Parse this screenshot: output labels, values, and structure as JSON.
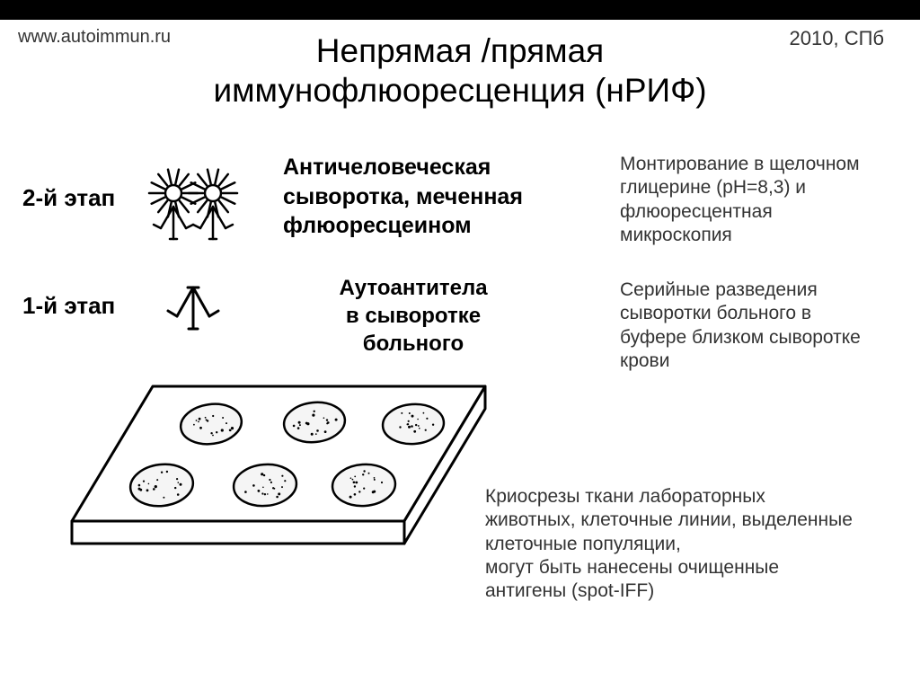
{
  "colors": {
    "background": "#ffffff",
    "top_band": "#000000",
    "text_main": "#000000",
    "text_secondary": "#333333",
    "line": "#000000",
    "cell_fill": "#f5f5f5",
    "slide_fill": "#ffffff"
  },
  "header": {
    "site": "www.autoimmun.ru",
    "year_city": "2010, СПб"
  },
  "title": {
    "line1": "Непрямая /прямая",
    "line2": "иммунофлюоресценция (нРИФ)"
  },
  "stage2": {
    "label": "2-й этап",
    "heading_line1": "Античеловеческая",
    "heading_line2": "сыворотка, меченная",
    "heading_line3": "флюоресцеином",
    "desc_line1": "Монтирование в щелочном",
    "desc_line2": "глицерине (рН=8,3) и",
    "desc_line3": "флюоресцентная",
    "desc_line4": "микроскопия"
  },
  "stage1": {
    "label": "1-й этап",
    "heading_line1": "Аутоантитела",
    "heading_line2": "в сыворотке",
    "heading_line3": "больного",
    "desc_line1": "Серийные разведения",
    "desc_line2": "сыворотки больного в",
    "desc_line3": "буфере близком сыворотке",
    "desc_line4": "крови"
  },
  "slide": {
    "desc_line1": "Криосрезы ткани лабораторных",
    "desc_line2": "животных, клеточные линии, выделенные",
    "desc_line3": "клеточные популяции,",
    "desc_line4": " могут быть нанесены очищенные",
    "desc_line5": "антигены (spot-IFF)"
  },
  "fonts": {
    "header": 20,
    "title": 37,
    "stage_label": 26,
    "stage_heading": 25,
    "stage_heading_1": 24,
    "desc": 21,
    "slide_desc": 21
  },
  "antibody_glow": {
    "ray_count": 14,
    "ray_length": 16
  }
}
